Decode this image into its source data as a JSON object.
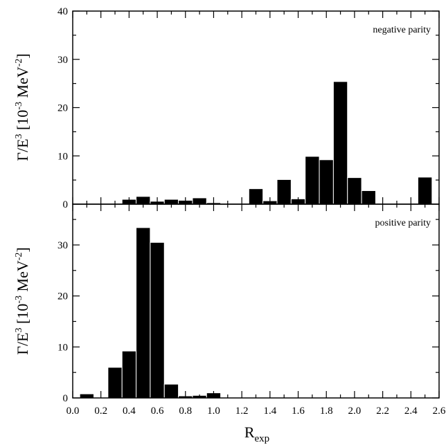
{
  "chart_data": {
    "type": "bar",
    "x_tick_labels": [
      "0.0",
      "0.2",
      "0.4",
      "0.6",
      "0.8",
      "1.0",
      "1.2",
      "1.4",
      "1.6",
      "1.8",
      "2.0",
      "2.2",
      "2.4",
      "2.6"
    ],
    "xlim": [
      0.0,
      2.6
    ],
    "bin_width": 0.1,
    "xlabel": {
      "main": "R",
      "sub": "exp"
    },
    "ylabel": {
      "prefix": "Γ/E",
      "sup1": "3",
      "mid": " [10",
      "sup2": "-3",
      "unit": " MeV",
      "sup3": "-2",
      "end": "]"
    },
    "panels": [
      {
        "annotation": "negative parity",
        "ylim": [
          0,
          40
        ],
        "y_ticks": [
          0,
          10,
          20,
          30,
          40
        ],
        "y_tick_labels": [
          "0",
          "10",
          "20",
          "30",
          "40"
        ],
        "bars": [
          {
            "x": 0.4,
            "value": 1.0
          },
          {
            "x": 0.5,
            "value": 1.6
          },
          {
            "x": 0.6,
            "value": 0.6
          },
          {
            "x": 0.7,
            "value": 1.0
          },
          {
            "x": 0.8,
            "value": 0.8
          },
          {
            "x": 0.9,
            "value": 1.3
          },
          {
            "x": 1.0,
            "value": 0.3
          },
          {
            "x": 1.3,
            "value": 3.2
          },
          {
            "x": 1.4,
            "value": 0.7
          },
          {
            "x": 1.5,
            "value": 5.1
          },
          {
            "x": 1.6,
            "value": 1.1
          },
          {
            "x": 1.7,
            "value": 9.9
          },
          {
            "x": 1.8,
            "value": 9.2
          },
          {
            "x": 1.9,
            "value": 25.4
          },
          {
            "x": 2.0,
            "value": 5.5
          },
          {
            "x": 2.1,
            "value": 2.8
          },
          {
            "x": 2.5,
            "value": 5.6
          }
        ]
      },
      {
        "annotation": "positive parity",
        "ylim": [
          0,
          38
        ],
        "y_ticks": [
          0,
          10,
          20,
          30
        ],
        "y_tick_labels": [
          "0",
          "10",
          "20",
          "30"
        ],
        "bars": [
          {
            "x": 0.1,
            "value": 0.8
          },
          {
            "x": 0.3,
            "value": 6.0
          },
          {
            "x": 0.4,
            "value": 9.2
          },
          {
            "x": 0.5,
            "value": 33.4
          },
          {
            "x": 0.6,
            "value": 30.5
          },
          {
            "x": 0.7,
            "value": 2.7
          },
          {
            "x": 0.8,
            "value": 0.4
          },
          {
            "x": 0.9,
            "value": 0.5
          },
          {
            "x": 1.0,
            "value": 1.0
          }
        ]
      }
    ]
  }
}
